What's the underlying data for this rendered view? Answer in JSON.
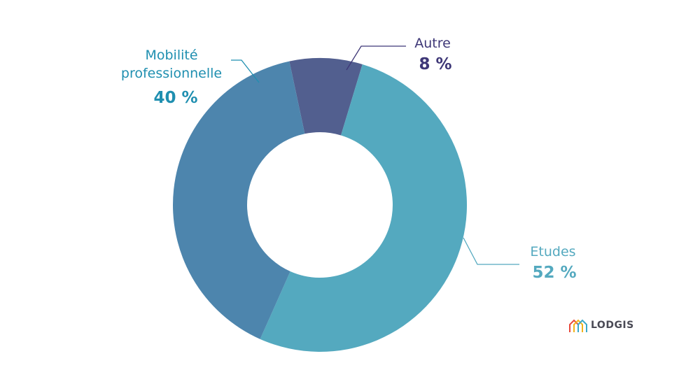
{
  "chart_data": {
    "type": "pie",
    "donut": true,
    "slices": [
      {
        "label": "Autre",
        "value": 8,
        "value_text": "8 %",
        "color": "#525f8f",
        "label_color": "#3e3777"
      },
      {
        "label": "Etudes",
        "value": 52,
        "value_text": "52 %",
        "color": "#54a9bf",
        "label_color": "#54a9bf"
      },
      {
        "label_lines": [
          "Mobilité",
          "professionnelle"
        ],
        "value": 40,
        "value_text": "40 %",
        "color": "#4d85ad",
        "label_color": "#1f8fb0"
      }
    ]
  },
  "logo": {
    "text": "LODGIS"
  }
}
